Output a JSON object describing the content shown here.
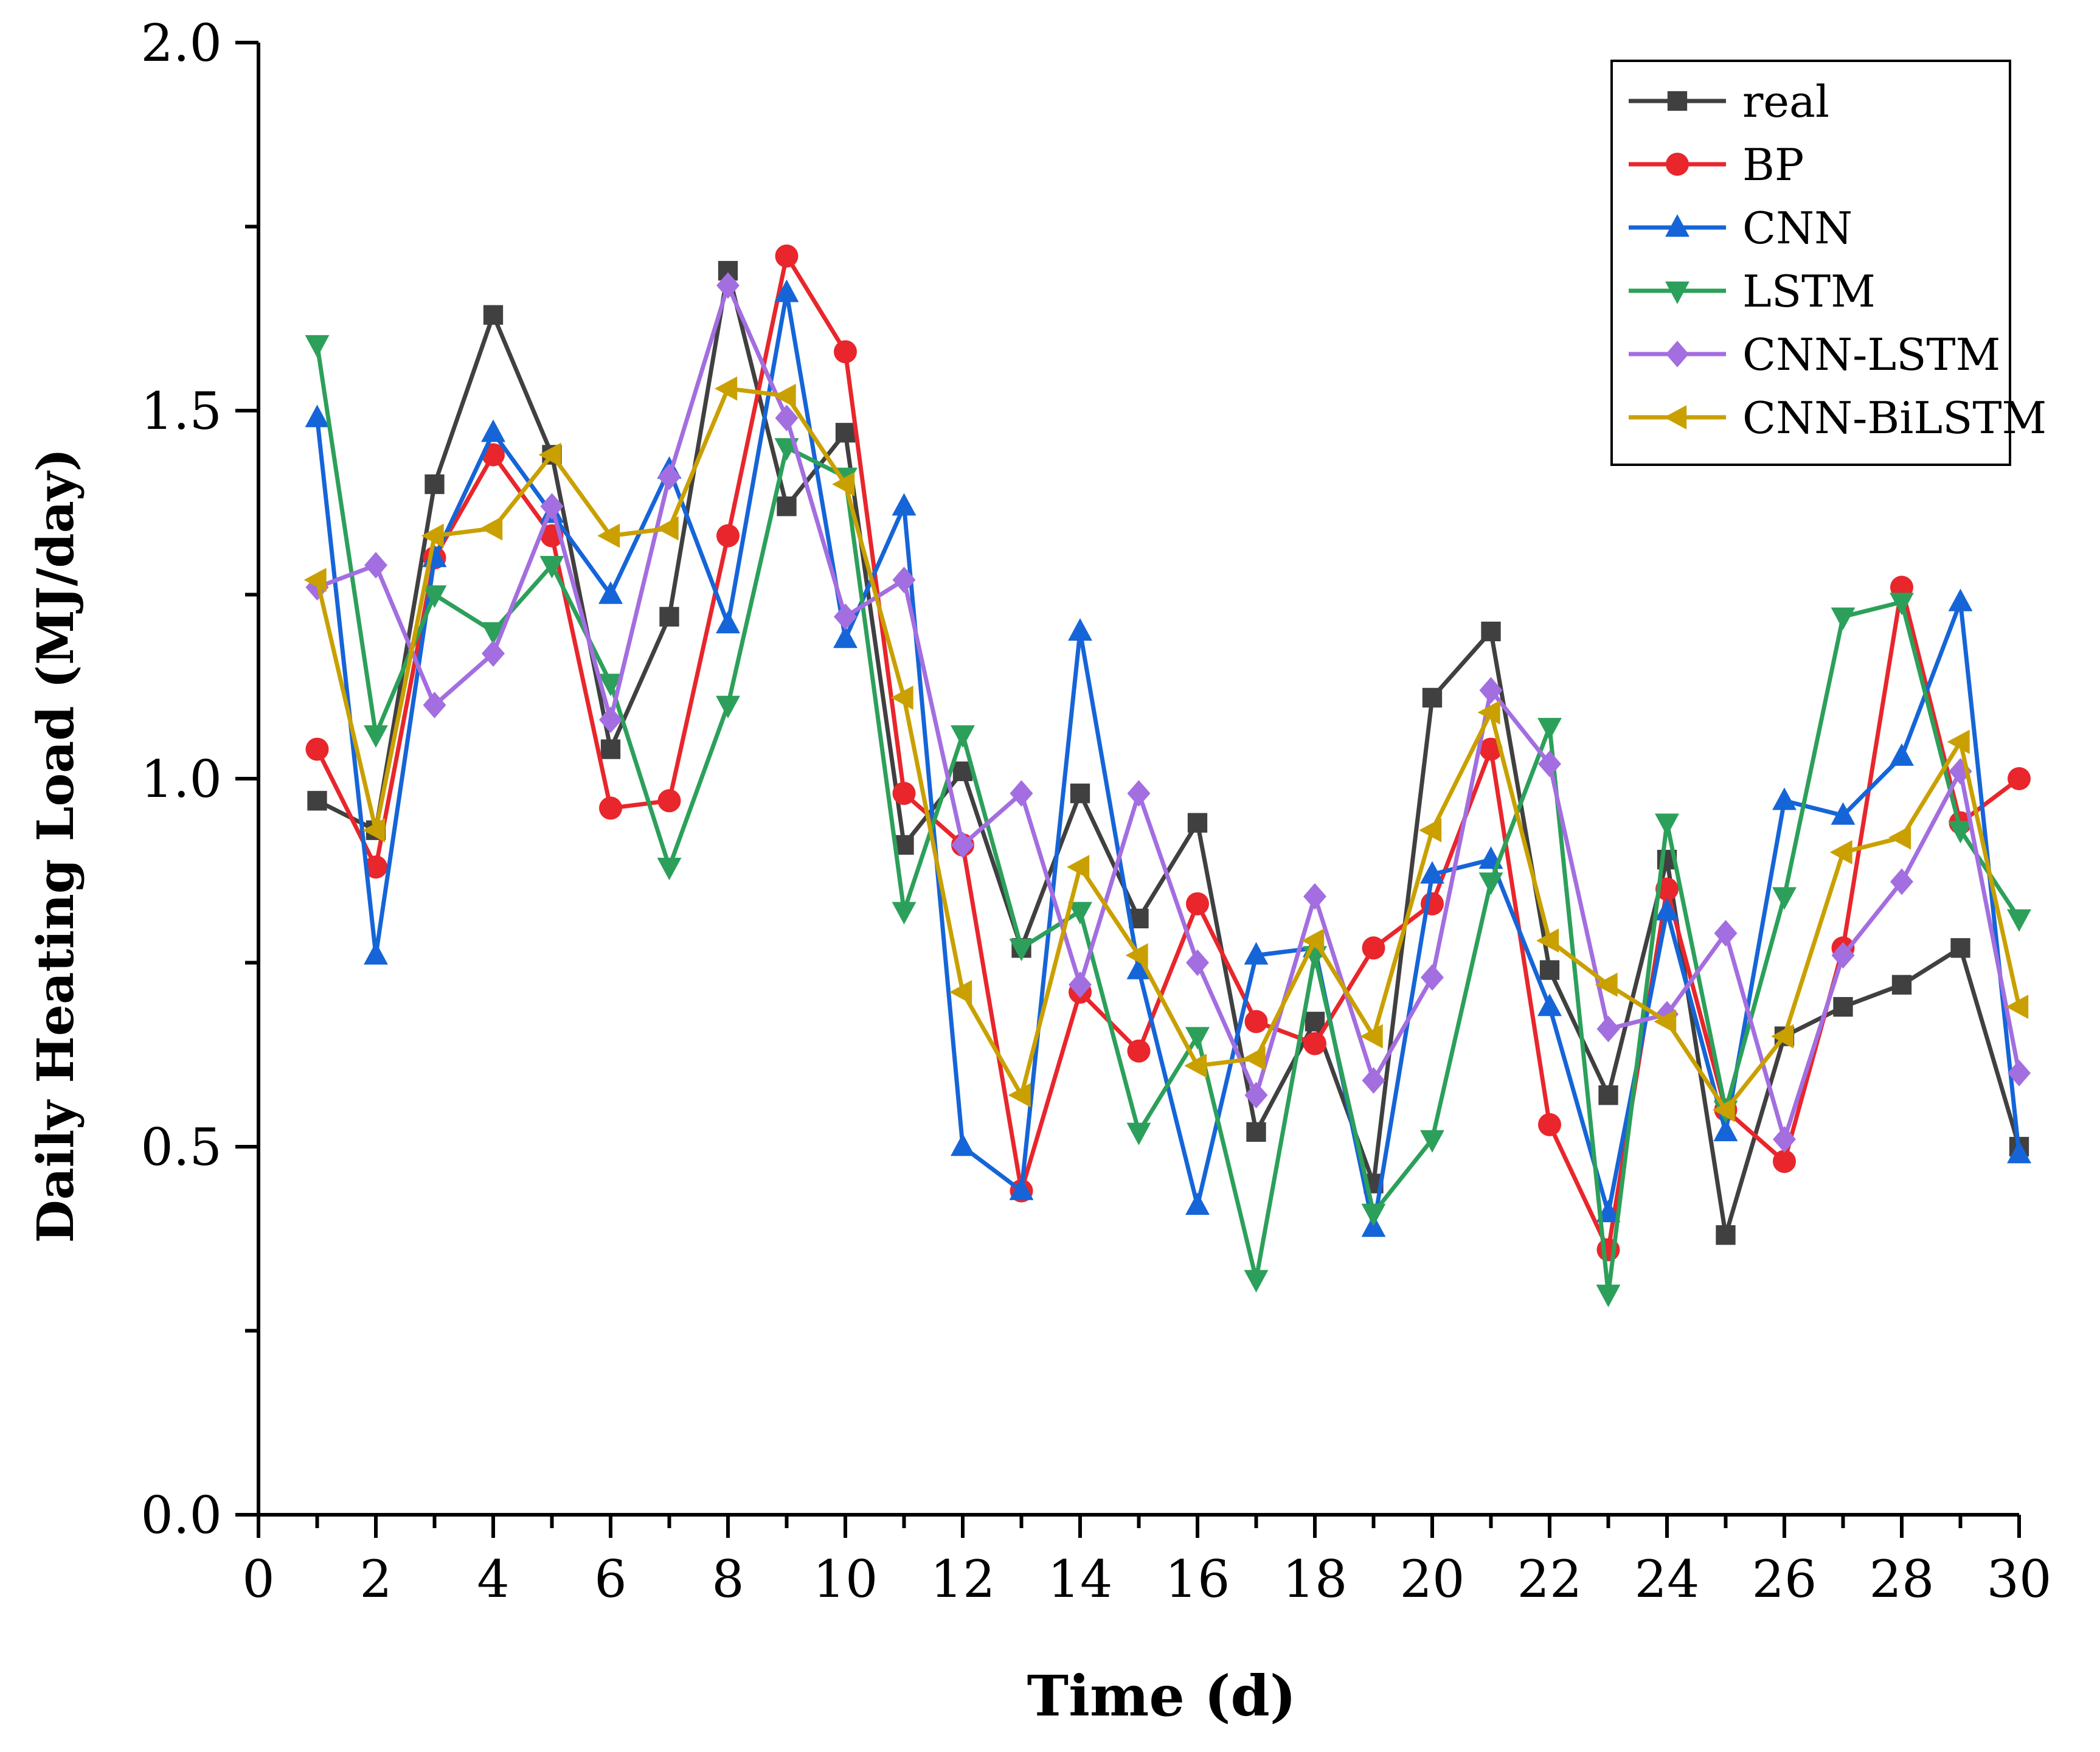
{
  "chart_data": {
    "type": "line",
    "xlabel": "Time (d)",
    "ylabel": "Daily Heating Load (MJ/day)",
    "xlim": [
      0,
      30
    ],
    "ylim": [
      0,
      2.0
    ],
    "x_ticks": [
      "0",
      "2",
      "4",
      "6",
      "8",
      "10",
      "12",
      "14",
      "16",
      "18",
      "20",
      "22",
      "24",
      "26",
      "28",
      "30"
    ],
    "y_ticks": [
      "0.0",
      "0.5",
      "1.0",
      "1.5",
      "2.0"
    ],
    "grid": false,
    "legend_position": "top-right",
    "x": [
      1,
      2,
      3,
      4,
      5,
      6,
      7,
      8,
      9,
      10,
      11,
      12,
      13,
      14,
      15,
      16,
      17,
      18,
      19,
      20,
      21,
      22,
      23,
      24,
      25,
      26,
      27,
      28,
      29,
      30
    ],
    "series": [
      {
        "name": "real",
        "color": "#404040",
        "marker": "square",
        "values": [
          0.97,
          0.93,
          1.4,
          1.63,
          1.44,
          1.04,
          1.22,
          1.69,
          1.37,
          1.47,
          0.91,
          1.01,
          0.77,
          0.98,
          0.81,
          0.94,
          0.52,
          0.67,
          0.45,
          1.11,
          1.2,
          0.74,
          0.57,
          0.89,
          0.38,
          0.65,
          0.69,
          0.72,
          0.77,
          0.5
        ]
      },
      {
        "name": "BP",
        "color": "#e8262c",
        "marker": "circle",
        "values": [
          1.04,
          0.88,
          1.3,
          1.44,
          1.33,
          0.96,
          0.97,
          1.33,
          1.71,
          1.58,
          0.98,
          0.91,
          0.44,
          0.71,
          0.63,
          0.83,
          0.67,
          0.64,
          0.77,
          0.83,
          1.04,
          0.53,
          0.36,
          0.85,
          0.55,
          0.48,
          0.77,
          1.26,
          0.94,
          1.0
        ]
      },
      {
        "name": "CNN",
        "color": "#1565d8",
        "marker": "triangle-up",
        "values": [
          1.49,
          0.76,
          1.3,
          1.47,
          1.36,
          1.25,
          1.42,
          1.21,
          1.66,
          1.19,
          1.37,
          0.5,
          0.44,
          1.2,
          0.74,
          0.42,
          0.76,
          0.77,
          0.39,
          0.87,
          0.89,
          0.69,
          0.41,
          0.82,
          0.52,
          0.97,
          0.95,
          1.03,
          1.24,
          0.49
        ]
      },
      {
        "name": "LSTM",
        "color": "#2ca05a",
        "marker": "triangle-down",
        "values": [
          1.59,
          1.06,
          1.25,
          1.2,
          1.29,
          1.13,
          0.88,
          1.1,
          1.45,
          1.41,
          0.82,
          1.06,
          0.77,
          0.82,
          0.52,
          0.65,
          0.32,
          0.76,
          0.41,
          0.51,
          0.86,
          1.07,
          0.3,
          0.94,
          0.55,
          0.84,
          1.22,
          1.24,
          0.93,
          0.81
        ]
      },
      {
        "name": "CNN-LSTM",
        "color": "#a36ee0",
        "marker": "diamond",
        "values": [
          1.26,
          1.29,
          1.1,
          1.17,
          1.37,
          1.08,
          1.41,
          1.67,
          1.49,
          1.22,
          1.27,
          0.91,
          0.98,
          0.72,
          0.98,
          0.75,
          0.57,
          0.84,
          0.59,
          0.73,
          1.12,
          1.02,
          0.66,
          0.68,
          0.79,
          0.51,
          0.76,
          0.86,
          1.01,
          0.6
        ]
      },
      {
        "name": "CNN-BiLSTM",
        "color": "#c9a000",
        "marker": "triangle-left",
        "values": [
          1.27,
          0.93,
          1.33,
          1.34,
          1.44,
          1.33,
          1.34,
          1.53,
          1.52,
          1.4,
          1.11,
          0.71,
          0.57,
          0.88,
          0.76,
          0.61,
          0.62,
          0.78,
          0.65,
          0.93,
          1.09,
          0.78,
          0.72,
          0.67,
          0.55,
          0.65,
          0.9,
          0.92,
          1.05,
          0.69
        ]
      }
    ]
  }
}
